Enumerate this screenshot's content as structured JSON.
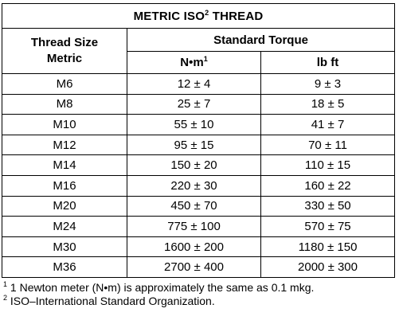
{
  "title": {
    "text": "METRIC ISO",
    "sup": "2",
    "suffix": " THREAD"
  },
  "header": {
    "size_line1": "Thread Size",
    "size_line2": "Metric",
    "group": "Standard Torque",
    "unit_nm": "N•m",
    "unit_nm_sup": "1",
    "unit_lbft": "lb ft"
  },
  "rows": [
    {
      "size": "M6",
      "nm": "12 ± 4",
      "lbft": "9 ± 3"
    },
    {
      "size": "M8",
      "nm": "25 ± 7",
      "lbft": "18 ± 5"
    },
    {
      "size": "M10",
      "nm": "55 ± 10",
      "lbft": "41 ± 7"
    },
    {
      "size": "M12",
      "nm": "95 ± 15",
      "lbft": "70 ± 11"
    },
    {
      "size": "M14",
      "nm": "150 ± 20",
      "lbft": "110 ± 15"
    },
    {
      "size": "M16",
      "nm": "220 ± 30",
      "lbft": "160 ± 22"
    },
    {
      "size": "M20",
      "nm": "450 ± 70",
      "lbft": "330 ± 50"
    },
    {
      "size": "M24",
      "nm": "775 ± 100",
      "lbft": "570 ± 75"
    },
    {
      "size": "M30",
      "nm": "1600 ± 200",
      "lbft": "1180 ± 150"
    },
    {
      "size": "M36",
      "nm": "2700 ± 400",
      "lbft": "2000 ± 300"
    }
  ],
  "footnotes": [
    {
      "mark": "1",
      "text": " 1 Newton meter (N•m) is approximately the same as 0.1 mkg."
    },
    {
      "mark": "2",
      "text": " ISO–International Standard Organization."
    }
  ]
}
